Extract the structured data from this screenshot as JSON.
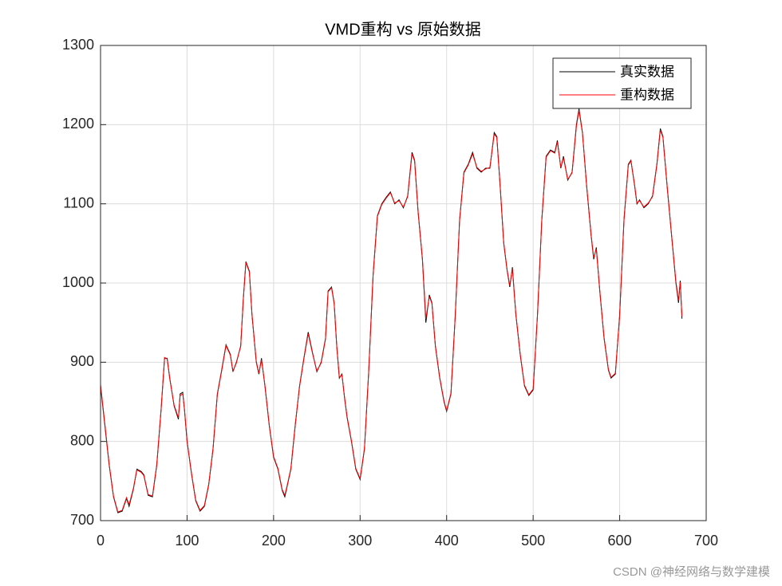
{
  "chart_data": {
    "type": "line",
    "title": "VMD重构 vs 原始数据",
    "x": [
      0,
      5,
      10,
      15,
      20,
      25,
      30,
      33,
      38,
      42,
      47,
      50,
      55,
      60,
      65,
      70,
      74,
      77,
      80,
      85,
      90,
      92,
      95,
      97,
      100,
      105,
      110,
      115,
      120,
      125,
      130,
      135,
      140,
      145,
      150,
      153,
      157,
      162,
      165,
      168,
      172,
      175,
      180,
      183,
      186,
      190,
      195,
      200,
      205,
      210,
      213,
      216,
      220,
      225,
      230,
      235,
      240,
      245,
      250,
      255,
      260,
      263,
      267,
      270,
      273,
      276,
      279,
      282,
      285,
      290,
      295,
      300,
      305,
      310,
      315,
      320,
      325,
      330,
      335,
      340,
      345,
      350,
      355,
      360,
      363,
      367,
      372,
      376,
      380,
      383,
      387,
      392,
      397,
      400,
      405,
      410,
      415,
      420,
      425,
      430,
      435,
      440,
      445,
      450,
      455,
      458,
      462,
      466,
      470,
      473,
      476,
      480,
      485,
      490,
      495,
      500,
      505,
      510,
      515,
      520,
      525,
      528,
      532,
      535,
      540,
      545,
      550,
      553,
      557,
      562,
      567,
      570,
      573,
      577,
      582,
      587,
      590,
      595,
      600,
      605,
      610,
      613,
      617,
      620,
      623,
      628,
      633,
      638,
      643,
      647,
      650,
      655,
      660,
      665,
      668,
      670,
      672
    ],
    "series": [
      {
        "name": "真实数据",
        "color": "#000000",
        "values": [
          870,
          820,
          770,
          730,
          710,
          712,
          728,
          718,
          740,
          765,
          762,
          758,
          732,
          730,
          770,
          840,
          905,
          905,
          880,
          845,
          828,
          860,
          862,
          840,
          800,
          760,
          725,
          712,
          718,
          745,
          790,
          860,
          890,
          922,
          910,
          888,
          900,
          920,
          980,
          1027,
          1015,
          960,
          900,
          885,
          905,
          870,
          820,
          780,
          765,
          738,
          730,
          745,
          765,
          820,
          870,
          905,
          938,
          912,
          888,
          900,
          930,
          990,
          995,
          975,
          920,
          880,
          885,
          855,
          830,
          800,
          765,
          752,
          790,
          890,
          1010,
          1085,
          1100,
          1108,
          1115,
          1100,
          1105,
          1095,
          1110,
          1165,
          1155,
          1090,
          1030,
          950,
          985,
          975,
          920,
          880,
          850,
          838,
          860,
          960,
          1080,
          1140,
          1150,
          1165,
          1145,
          1140,
          1145,
          1145,
          1190,
          1185,
          1120,
          1050,
          1015,
          995,
          1020,
          960,
          910,
          870,
          858,
          865,
          960,
          1080,
          1160,
          1168,
          1165,
          1180,
          1145,
          1160,
          1130,
          1140,
          1200,
          1220,
          1190,
          1120,
          1060,
          1030,
          1045,
          990,
          930,
          890,
          880,
          885,
          960,
          1080,
          1150,
          1155,
          1125,
          1100,
          1105,
          1095,
          1100,
          1110,
          1150,
          1195,
          1185,
          1120,
          1060,
          1000,
          975,
          1003,
          955
        ]
      },
      {
        "name": "重构数据",
        "color": "#ff0000",
        "values": [
          872,
          822,
          771,
          731,
          711,
          713,
          729,
          720,
          741,
          764,
          761,
          757,
          733,
          731,
          771,
          841,
          906,
          904,
          879,
          846,
          830,
          858,
          860,
          841,
          801,
          761,
          726,
          713,
          719,
          746,
          791,
          859,
          889,
          921,
          909,
          889,
          899,
          921,
          979,
          1026,
          1014,
          961,
          901,
          886,
          903,
          871,
          821,
          781,
          766,
          739,
          732,
          746,
          766,
          821,
          869,
          904,
          936,
          911,
          889,
          899,
          929,
          989,
          994,
          974,
          921,
          881,
          884,
          856,
          831,
          801,
          766,
          753,
          791,
          889,
          1009,
          1084,
          1099,
          1107,
          1114,
          1101,
          1104,
          1096,
          1109,
          1163,
          1154,
          1091,
          1031,
          955,
          983,
          974,
          921,
          881,
          851,
          839,
          861,
          959,
          1079,
          1139,
          1149,
          1163,
          1146,
          1141,
          1144,
          1146,
          1188,
          1184,
          1121,
          1051,
          1016,
          997,
          1018,
          961,
          911,
          871,
          859,
          866,
          959,
          1079,
          1159,
          1167,
          1164,
          1178,
          1146,
          1158,
          1131,
          1139,
          1198,
          1218,
          1189,
          1121,
          1061,
          1032,
          1043,
          991,
          931,
          891,
          881,
          886,
          959,
          1079,
          1149,
          1154,
          1126,
          1101,
          1104,
          1096,
          1101,
          1109,
          1149,
          1193,
          1184,
          1121,
          1061,
          1002,
          978,
          1001,
          958
        ]
      }
    ],
    "xlim": [
      0,
      700
    ],
    "xticks": [
      0,
      100,
      200,
      300,
      400,
      500,
      600,
      700
    ],
    "ylim": [
      700,
      1300
    ],
    "yticks": [
      700,
      800,
      900,
      1000,
      1100,
      1200,
      1300
    ],
    "grid": true,
    "legend": "northeast",
    "watermark": "CSDN @神经网络与数学建模"
  }
}
